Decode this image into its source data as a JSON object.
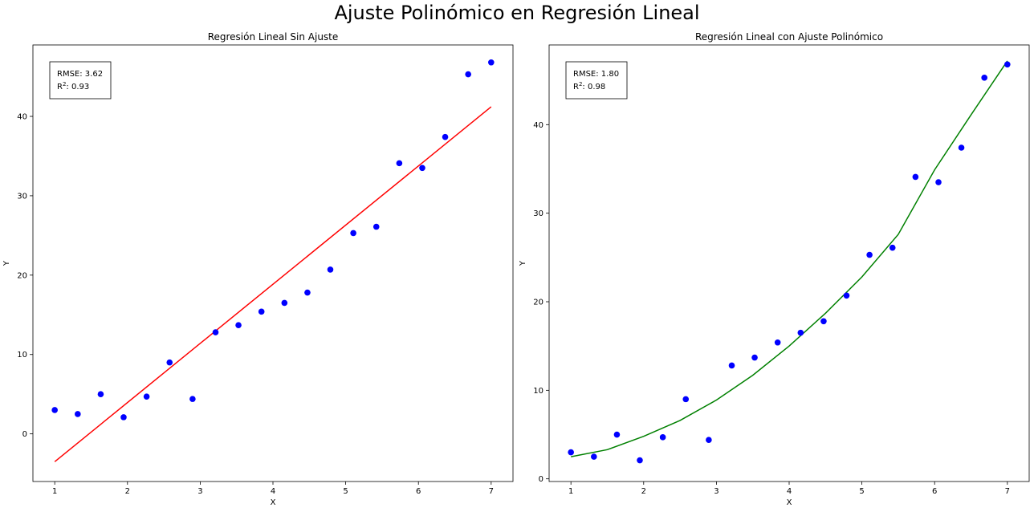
{
  "figure": {
    "suptitle": "Ajuste Polinómico en Regresión Lineal"
  },
  "chart_data": [
    {
      "type": "scatter",
      "title": "Regresión Lineal Sin Ajuste",
      "xlabel": "X",
      "ylabel": "Y",
      "xlim": [
        0.7,
        7.3
      ],
      "ylim": [
        -6.0,
        49.0
      ],
      "xticks": [
        1,
        2,
        3,
        4,
        5,
        6,
        7
      ],
      "yticks": [
        0,
        10,
        20,
        30,
        40
      ],
      "grid": false,
      "annotation": {
        "rmse": "RMSE: 3.62",
        "r2": "0.93"
      },
      "points": {
        "color": "#0000ff",
        "x": [
          1.0,
          1.316,
          1.632,
          1.947,
          2.263,
          2.579,
          2.895,
          3.211,
          3.526,
          3.842,
          4.158,
          4.474,
          4.789,
          5.105,
          5.421,
          5.737,
          6.053,
          6.368,
          6.684,
          7.0
        ],
        "y": [
          3.0,
          2.5,
          5.0,
          2.1,
          4.7,
          9.0,
          4.4,
          12.8,
          13.7,
          15.4,
          16.5,
          17.8,
          20.7,
          25.3,
          26.1,
          34.1,
          33.5,
          37.4,
          45.3,
          46.8
        ]
      },
      "fit": {
        "kind": "linear",
        "color": "#ff0000",
        "x": [
          1.0,
          7.0
        ],
        "y": [
          -3.5,
          41.2
        ]
      }
    },
    {
      "type": "scatter",
      "title": "Regresión Lineal con Ajuste Polinómico",
      "xlabel": "X",
      "ylabel": "Y",
      "xlim": [
        0.7,
        7.3
      ],
      "ylim": [
        -0.3,
        49.0
      ],
      "xticks": [
        1,
        2,
        3,
        4,
        5,
        6,
        7
      ],
      "yticks": [
        0,
        10,
        20,
        30,
        40
      ],
      "grid": false,
      "annotation": {
        "rmse": "RMSE: 1.80",
        "r2": "0.98"
      },
      "points": {
        "color": "#0000ff",
        "x": [
          1.0,
          1.316,
          1.632,
          1.947,
          2.263,
          2.579,
          2.895,
          3.211,
          3.526,
          3.842,
          4.158,
          4.474,
          4.789,
          5.105,
          5.421,
          5.737,
          6.053,
          6.368,
          6.684,
          7.0
        ],
        "y": [
          3.0,
          2.5,
          5.0,
          2.1,
          4.7,
          9.0,
          4.4,
          12.8,
          13.7,
          15.4,
          16.5,
          17.8,
          20.7,
          25.3,
          26.1,
          34.1,
          33.5,
          37.4,
          45.3,
          46.8
        ]
      },
      "fit": {
        "kind": "polynomial",
        "color": "#008000",
        "x": [
          1.0,
          1.5,
          2.0,
          2.5,
          3.0,
          3.5,
          4.0,
          4.5,
          5.0,
          5.5,
          6.0,
          6.5,
          7.0
        ],
        "y": [
          2.5,
          3.3,
          4.8,
          6.6,
          8.9,
          11.7,
          15.0,
          18.7,
          22.8,
          27.6,
          34.9,
          41.1,
          47.2
        ]
      }
    }
  ]
}
